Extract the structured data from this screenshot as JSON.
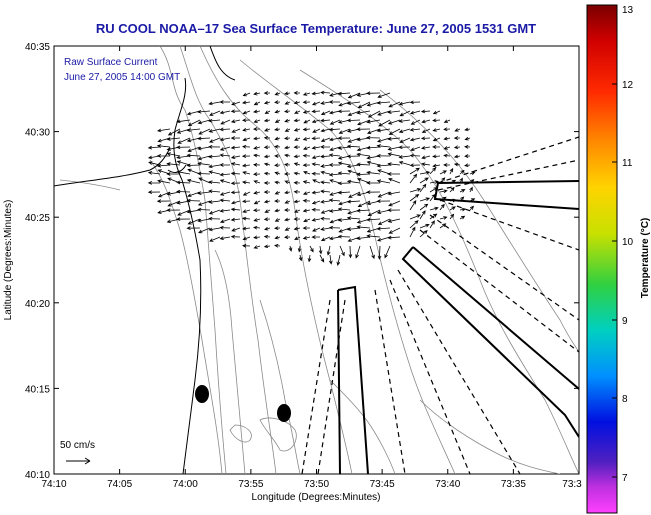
{
  "map": {
    "title": "RU COOL  NOAA–17  Sea Surface Temperature:  June 27, 2005 1531 GMT",
    "annotation_line1": "Raw Surface Current",
    "annotation_line2": "June 27, 2005 14:00 GMT",
    "scale_label": "50 cm/s",
    "x_axis_label": "Longitude (Degrees:Minutes)",
    "y_axis_label": "Latitude (Degrees:Minutes)",
    "x_ticks": [
      "74:10",
      "74:05",
      "74:00",
      "73:55",
      "73:50",
      "73:45",
      "73:40",
      "73:35",
      "73:3"
    ],
    "y_ticks": [
      "40:35",
      "40:30",
      "40:25",
      "40:20",
      "40:15",
      "40:10"
    ]
  },
  "colorbar": {
    "label": "Temperature (°C)",
    "ticks": [
      "13",
      "12",
      "11",
      "10",
      "9",
      "8",
      "7"
    ],
    "colors": [
      "#7a0000",
      "#e00000",
      "#ff6a00",
      "#ffd000",
      "#a8e000",
      "#20d040",
      "#00d0d0",
      "#0080ff",
      "#0010d0",
      "#6020c0",
      "#ff30ff"
    ]
  },
  "legend_colors": {
    "title": "#1a1aa6",
    "land": "#ffffff",
    "arrows": "#000000"
  }
}
